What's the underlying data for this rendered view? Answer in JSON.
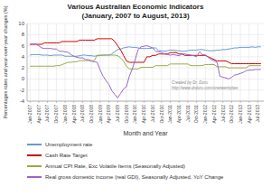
{
  "chart_data": {
    "type": "line",
    "title": "Various Australian Economic Indicators\n(January, 2007 to August, 2013)",
    "x_label": "Month and Year",
    "y_label": "Percentages rates and year-over-year changes (%)",
    "annotations": [
      "Created by Dr. Duru",
      "http://www.drduru.com/onetwentytwo"
    ],
    "categories": [
      "Jan-2007",
      null,
      null,
      "Apr-2007",
      null,
      null,
      "Jul-2007",
      null,
      null,
      "Oct-2007",
      null,
      null,
      "Jan-2008",
      null,
      null,
      "Apr-2008",
      null,
      null,
      "Jul-2008",
      null,
      null,
      "Oct-2008",
      null,
      null,
      "Jan-2009",
      null,
      null,
      "Apr-2009",
      null,
      null,
      "Jul-2009",
      null,
      null,
      "Oct-2009",
      null,
      null,
      "Jan-2010",
      null,
      null,
      "Apr-2010",
      null,
      null,
      "Jul-2010",
      null,
      null,
      "Oct-2010",
      null,
      null,
      "Jan-2011",
      null,
      null,
      "Apr-2011",
      null,
      null,
      "Jul-2011",
      null,
      null,
      "Oct-2011",
      null,
      null,
      "Jan-2012",
      null,
      null,
      "Apr-2012",
      null,
      null,
      "Jul-2012",
      null,
      null,
      "Oct-2012",
      null,
      null,
      "Jan-2013",
      null,
      null,
      "Apr-2013",
      null,
      null,
      "Jul-2013",
      null
    ],
    "series": [
      {
        "name": "Unemployment rate",
        "color": "#6699CC",
        "values": [
          4.3,
          4.4,
          4.4,
          4.4,
          4.3,
          4.3,
          4.3,
          4.2,
          4.3,
          4.3,
          4.3,
          4.3,
          4.1,
          4.1,
          4.1,
          4.1,
          4.1,
          4.2,
          4.3,
          4.3,
          4.2,
          4.2,
          4.1,
          4.2,
          4.2,
          4.3,
          4.3,
          4.3,
          4.5,
          4.9,
          5.3,
          5.4,
          5.6,
          5.7,
          5.8,
          5.7,
          5.7,
          5.6,
          5.5,
          5.5,
          5.5,
          5.5,
          5.6,
          5.6,
          5.1,
          5.1,
          5.0,
          5.1,
          5.2,
          5.2,
          5.1,
          5.1,
          5.0,
          5.0,
          5.1,
          5.2,
          5.2,
          5.2,
          5.3,
          5.3,
          5.2,
          5.1,
          5.1,
          5.1,
          5.2,
          5.2,
          5.3,
          5.3,
          5.4,
          5.5,
          5.6,
          5.6,
          5.7,
          5.7,
          5.7,
          5.7,
          5.8,
          5.7,
          5.8,
          5.8
        ]
      },
      {
        "name": "Cash Rate Target",
        "color": "#CC0000",
        "values": [
          6.25,
          6.25,
          6.25,
          6.25,
          6.25,
          6.5,
          6.5,
          6.5,
          6.5,
          6.5,
          6.5,
          6.75,
          6.75,
          6.75,
          6.75,
          6.75,
          6.75,
          7.0,
          7.0,
          7.0,
          7.0,
          7.0,
          7.0,
          7.25,
          7.25,
          7.25,
          7.25,
          7.25,
          7.25,
          6.75,
          6.0,
          5.25,
          4.25,
          3.25,
          3.0,
          3.0,
          3.0,
          3.0,
          3.0,
          3.0,
          4.0,
          4.0,
          4.25,
          4.25,
          4.5,
          4.5,
          4.5,
          4.5,
          4.75,
          4.75,
          4.75,
          4.5,
          4.5,
          4.25,
          4.25,
          4.25,
          4.25,
          4.25,
          4.25,
          4.25,
          4.25,
          4.0,
          3.75,
          3.5,
          3.25,
          3.25,
          3.25,
          3.25,
          3.0,
          2.75,
          2.75,
          2.75,
          2.75,
          2.75,
          2.75,
          2.75,
          2.75,
          2.75,
          2.75,
          2.75
        ]
      },
      {
        "name": "Annual CPI Rate, Exc Volatile Items (Seasonally Adjusted)",
        "color": "#99AA44",
        "values": [
          2.3,
          2.3,
          2.3,
          2.3,
          2.3,
          2.3,
          2.3,
          2.3,
          2.3,
          2.4,
          2.4,
          2.6,
          2.8,
          3.0,
          3.0,
          3.1,
          3.1,
          3.3,
          3.3,
          3.3,
          3.3,
          3.3,
          3.3,
          4.3,
          4.3,
          4.3,
          4.3,
          4.3,
          4.3,
          4.3,
          4.2,
          3.8,
          3.2,
          2.3,
          1.8,
          1.8,
          1.8,
          1.8,
          2.1,
          2.1,
          2.1,
          2.1,
          2.1,
          2.4,
          2.4,
          2.4,
          2.4,
          2.4,
          2.7,
          2.7,
          2.7,
          2.7,
          2.7,
          2.7,
          2.7,
          2.4,
          2.4,
          2.4,
          2.4,
          2.4,
          2.6,
          2.6,
          2.6,
          2.6,
          2.2,
          2.2,
          2.2,
          2.2,
          2.0,
          2.0,
          2.0,
          2.0,
          2.0,
          2.0,
          2.0,
          2.4,
          2.4,
          2.4,
          2.4,
          2.4
        ]
      },
      {
        "name": "Real gross domestic income (real GDI), Seasonally Adjusted, YoY Change",
        "color": "#9966CC",
        "values": [
          6.2,
          6.3,
          6.3,
          6.0,
          5.6,
          5.5,
          5.5,
          5.5,
          5.4,
          5.4,
          5.0,
          5.0,
          4.9,
          4.8,
          4.4,
          4.1,
          3.9,
          3.8,
          3.8,
          3.5,
          3.5,
          3.2,
          3.1,
          3.0,
          1.6,
          0.5,
          -0.3,
          -1.0,
          -2.1,
          -2.8,
          -3.4,
          -2.6,
          -1.8,
          -1.4,
          0.5,
          1.8,
          3.5,
          5.3,
          5.8,
          5.9,
          6.0,
          5.8,
          5.6,
          5.0,
          4.9,
          4.8,
          4.5,
          4.4,
          4.3,
          4.4,
          4.3,
          4.2,
          4.5,
          4.5,
          4.4,
          4.3,
          4.2,
          4.0,
          4.9,
          4.4,
          4.3,
          3.9,
          3.5,
          3.3,
          3.0,
          0.5,
          0.3,
          0.2,
          0.0,
          0.3,
          0.7,
          0.8,
          1.0,
          1.2,
          1.5,
          1.6,
          1.6,
          1.7,
          1.7,
          1.7
        ]
      }
    ],
    "ylim": [
      -4,
      10
    ],
    "yticks": [
      -4,
      -2,
      0,
      2,
      4,
      6,
      8,
      10
    ],
    "grid": true,
    "legend": "bottom"
  }
}
